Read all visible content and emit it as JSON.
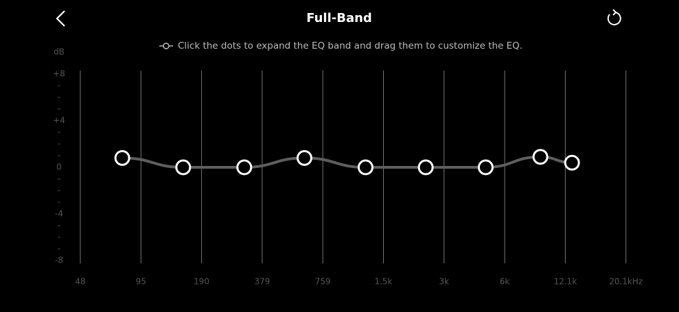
{
  "header": {
    "title": "Full-Band"
  },
  "chart_data": {
    "type": "eq-curve",
    "hint": "Click the dots to expand the EQ band and drag them to customize the EQ.",
    "ylabel": "dB",
    "ylim": [
      -8,
      8
    ],
    "yticks": [
      {
        "value": 8,
        "label": "+8"
      },
      {
        "value": 7,
        "label": "-"
      },
      {
        "value": 6,
        "label": "-"
      },
      {
        "value": 5,
        "label": "-"
      },
      {
        "value": 4,
        "label": "+4"
      },
      {
        "value": 3,
        "label": "-"
      },
      {
        "value": 2,
        "label": "-"
      },
      {
        "value": 1,
        "label": "-"
      },
      0,
      {
        "value": -1,
        "label": "-"
      },
      {
        "value": -2,
        "label": "-"
      },
      {
        "value": -3,
        "label": "-"
      },
      -4,
      {
        "value": -5,
        "label": "-"
      },
      {
        "value": -6,
        "label": "-"
      },
      {
        "value": -7,
        "label": "-"
      },
      -8
    ],
    "xscale": "log",
    "xticks": [
      48,
      95,
      190,
      379,
      759,
      {
        "value": 1500,
        "label": "1.5k"
      },
      {
        "value": 3000,
        "label": "3k"
      },
      {
        "value": 6000,
        "label": "6k"
      },
      {
        "value": 12100,
        "label": "12.1k"
      },
      {
        "value": 20100,
        "label": "20.1kHz"
      }
    ],
    "series": [
      {
        "color": "#5e5e5e",
        "x": [
          77,
          154,
          309,
          615,
          1227,
          2433,
          4828,
          9070,
          12800
        ],
        "values": [
          0.8,
          0,
          0,
          0.8,
          0,
          0,
          0,
          0.9,
          0.4
        ]
      }
    ]
  }
}
